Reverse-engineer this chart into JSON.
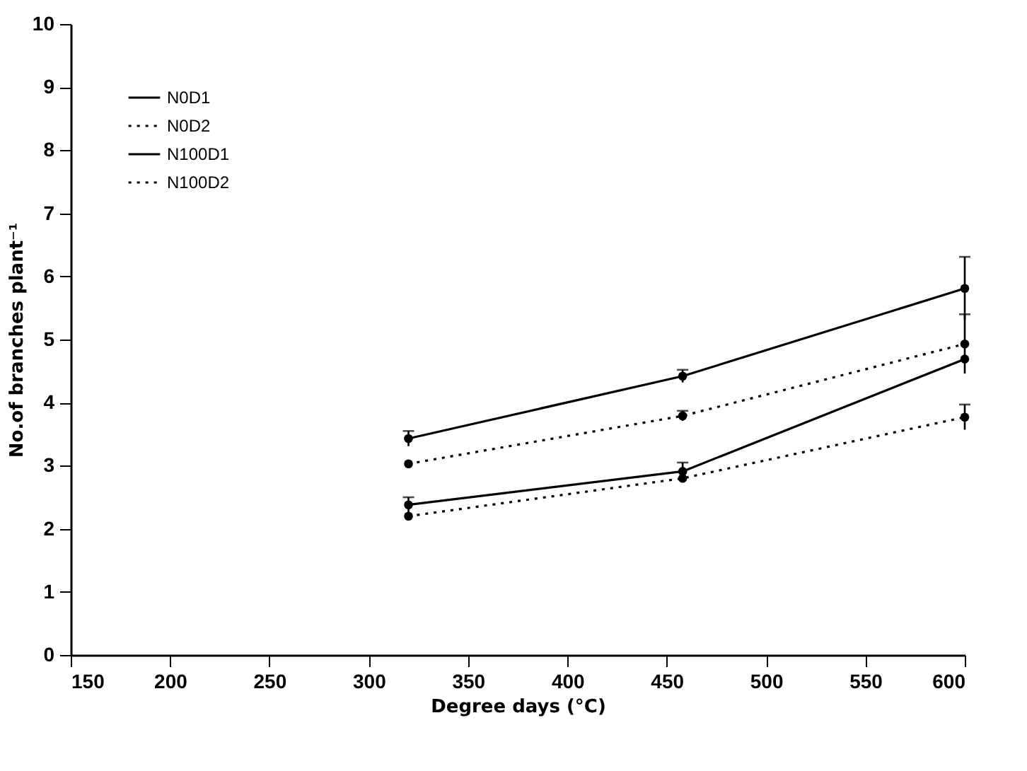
{
  "chart_data": {
    "type": "line",
    "xlabel": "Degree days (°C)",
    "ylabel": "No.of branches plant⁻¹",
    "x": [
      320,
      458,
      600
    ],
    "xlim": [
      150,
      600
    ],
    "xticks": [
      150,
      200,
      250,
      300,
      350,
      400,
      450,
      500,
      550,
      600
    ],
    "ylim": [
      0,
      10
    ],
    "yticks": [
      0,
      1,
      2,
      3,
      4,
      5,
      6,
      7,
      8,
      9,
      10
    ],
    "grid": false,
    "legend": "top left",
    "marker": "circle",
    "series": [
      {
        "name": "N0D1",
        "color": "#000000",
        "line_style": "solid",
        "values": [
          2.38,
          2.91,
          4.69
        ],
        "errors": [
          0.12,
          0.14,
          null
        ]
      },
      {
        "name": "N0D2",
        "color": "#000000",
        "line_style": "dotted",
        "values": [
          2.2,
          2.8,
          3.77
        ],
        "errors": [
          null,
          null,
          0.2
        ]
      },
      {
        "name": "N100D1",
        "color": "#000000",
        "line_style": "solid",
        "values": [
          3.43,
          4.42,
          5.81
        ],
        "errors": [
          0.12,
          0.1,
          0.5
        ]
      },
      {
        "name": "N100D2",
        "color": "#000000",
        "line_style": "dotted",
        "values": [
          3.03,
          3.79,
          4.93
        ],
        "errors": [
          null,
          0.08,
          0.47
        ]
      }
    ]
  }
}
